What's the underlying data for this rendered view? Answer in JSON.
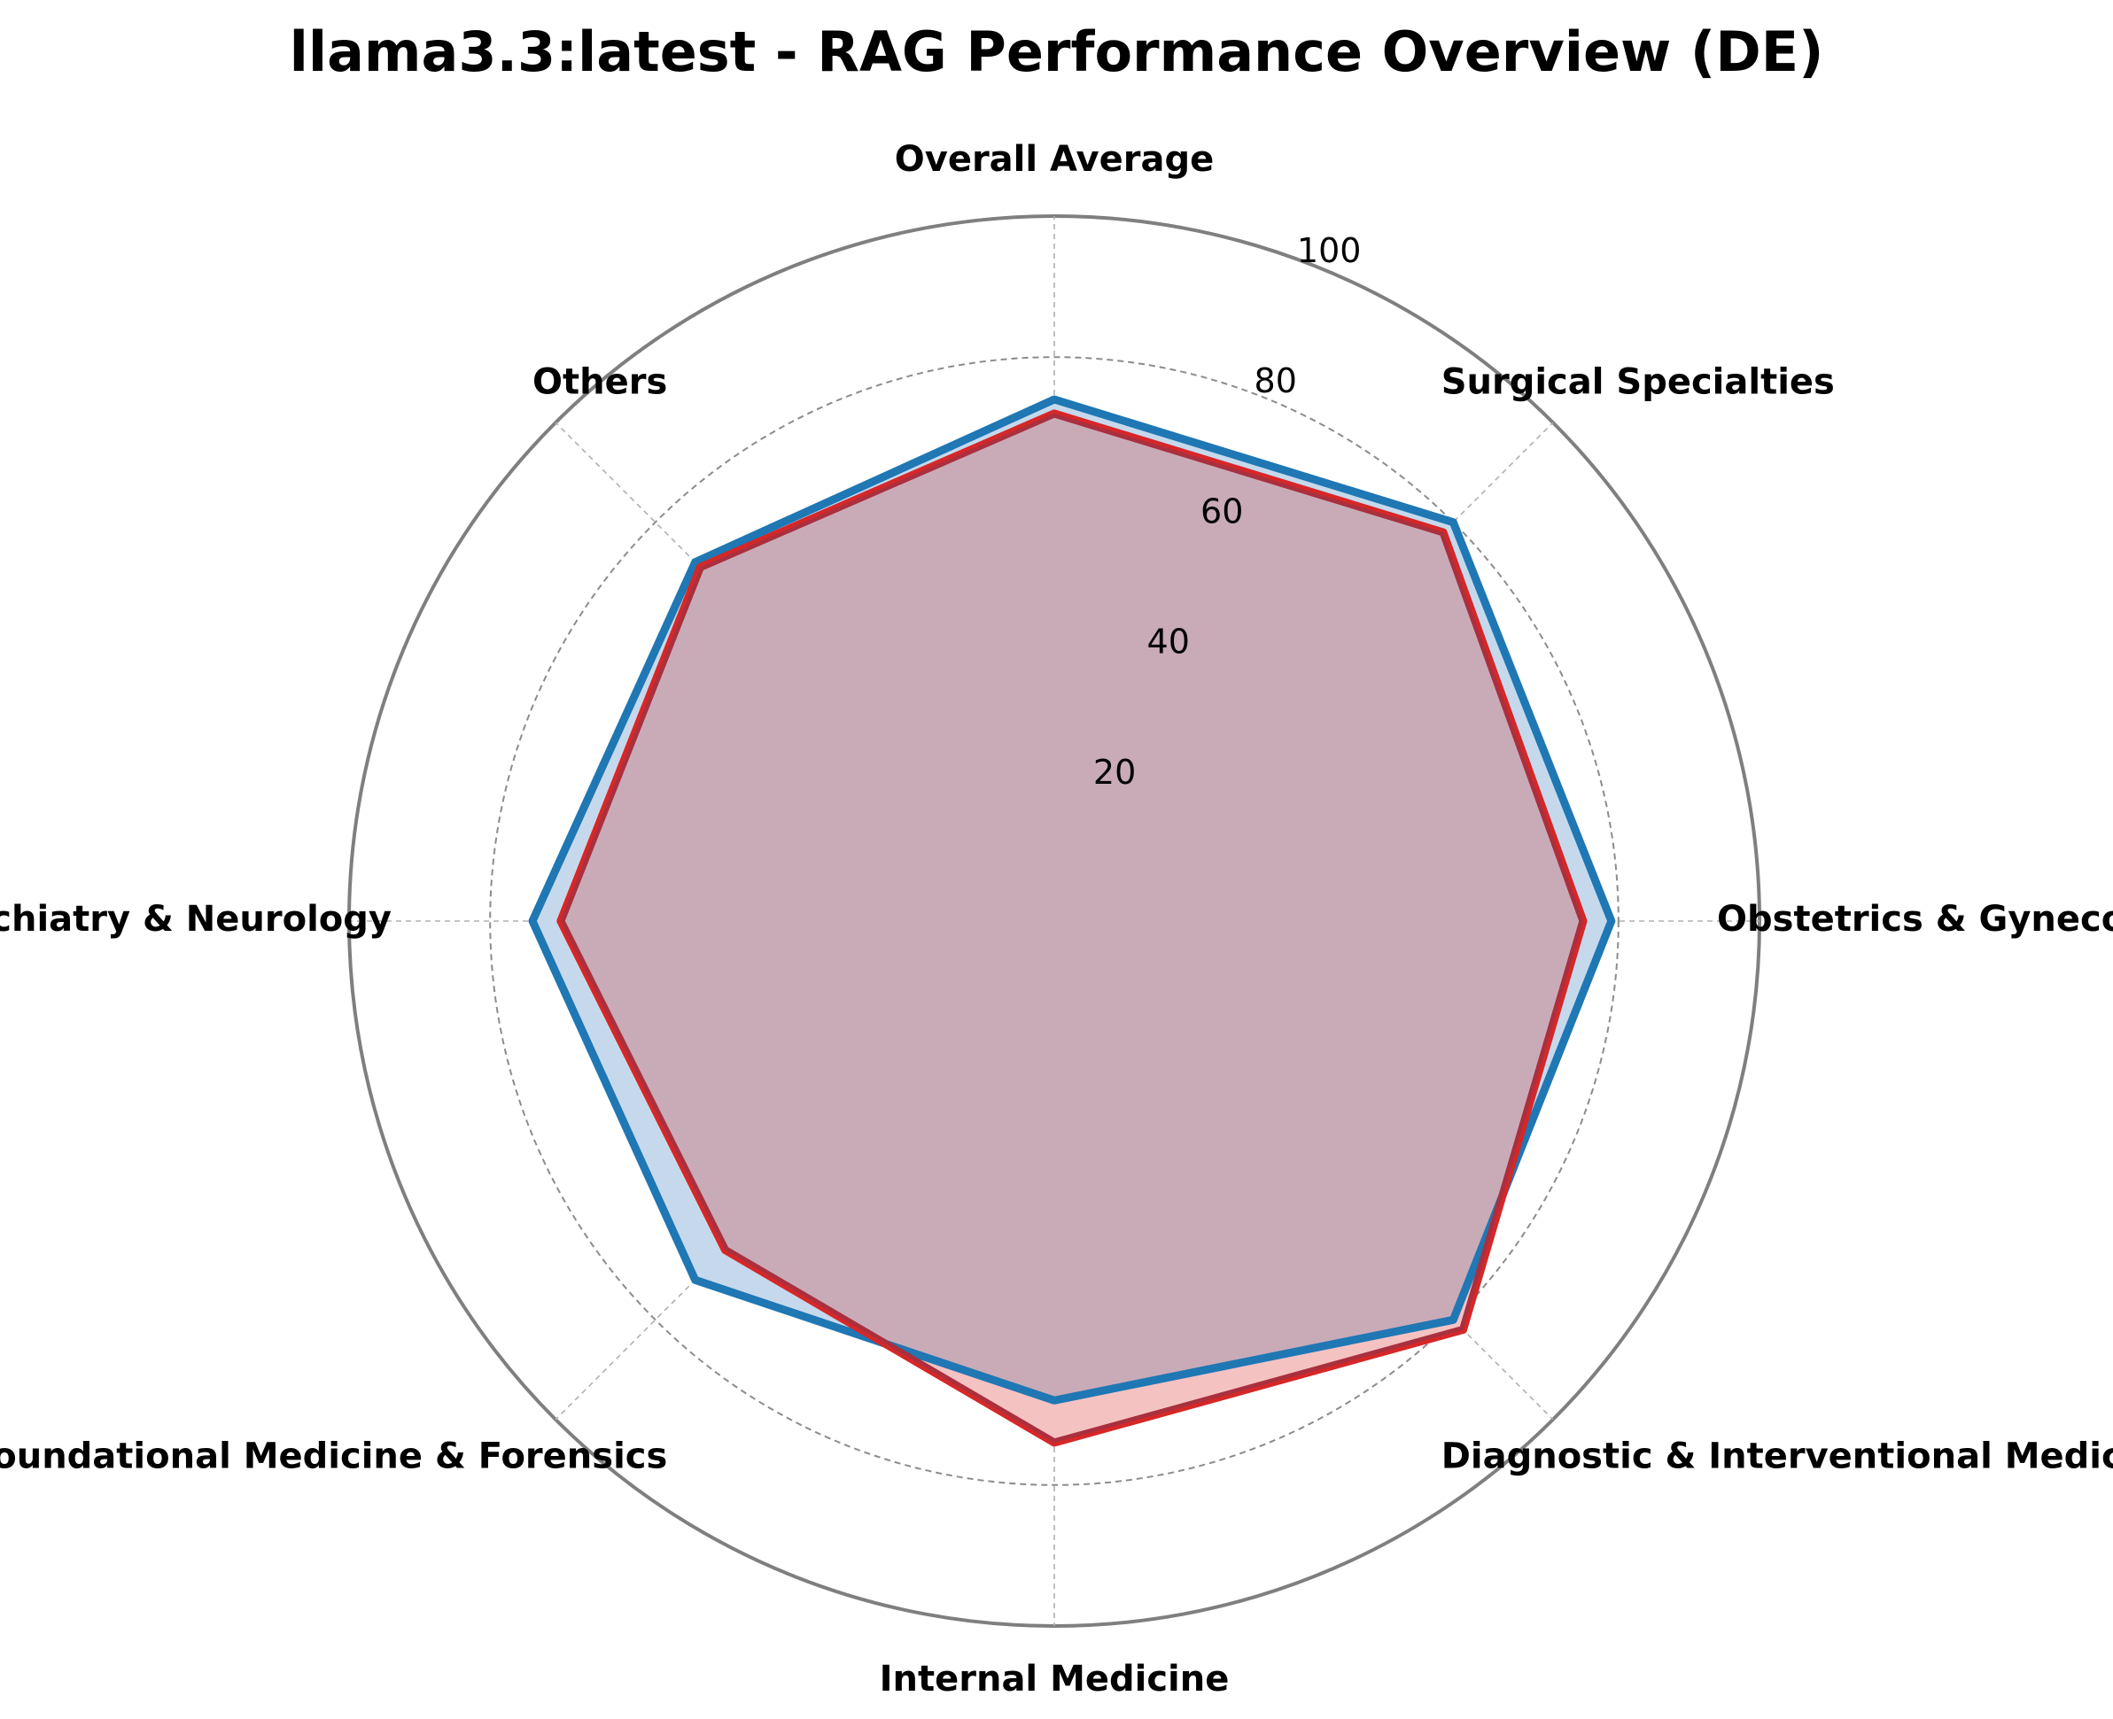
{
  "chart_data": {
    "type": "radar",
    "title": "llama3.3:latest - RAG Performance Overview (DE)",
    "categories": [
      "Overall Average",
      "Surgical Specialties",
      "Obstetrics & Gynecology",
      "Diagnostic & Interventional Medicine",
      "Internal Medicine",
      "Foundational Medicine & Forensics",
      "Psychiatry & Neurology",
      "Others"
    ],
    "series": [
      {
        "values": [
          74,
          80,
          79,
          80,
          68,
          72,
          74,
          72
        ],
        "color": "#1f77b4",
        "fill": "#c6d9ec"
      },
      {
        "values": [
          72,
          78,
          75,
          82,
          74,
          66,
          70,
          71
        ],
        "color": "#d62728",
        "fill": "#f5c2c2"
      }
    ],
    "overlap_fill": "#c9abb8",
    "overlap_line": "#a8303f",
    "rlim": [
      0,
      100
    ],
    "rticks": [
      20,
      40,
      60,
      80,
      100
    ],
    "rtick_labels": [
      "20",
      "40",
      "60",
      "80",
      "100"
    ],
    "grid": true,
    "legend": "none"
  }
}
